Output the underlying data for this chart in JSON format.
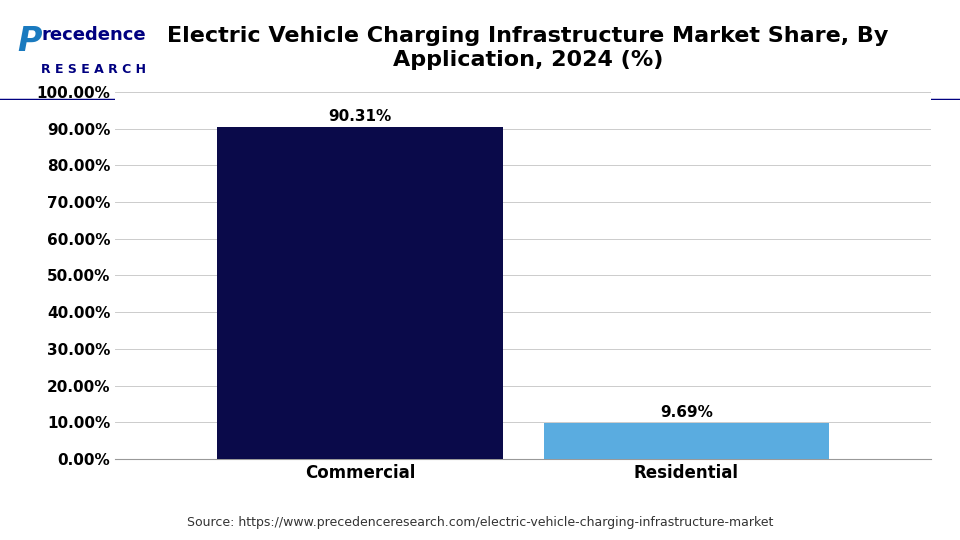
{
  "title": "Electric Vehicle Charging Infrastructure Market Share, By\nApplication, 2024 (%)",
  "categories": [
    "Commercial",
    "Residential"
  ],
  "values": [
    90.31,
    9.69
  ],
  "bar_colors": [
    "#0a0a4a",
    "#5aace0"
  ],
  "bar_labels": [
    "90.31%",
    "9.69%"
  ],
  "ylim": [
    0,
    100
  ],
  "yticks": [
    0,
    10,
    20,
    30,
    40,
    50,
    60,
    70,
    80,
    90,
    100
  ],
  "ytick_labels": [
    "0.00%",
    "10.00%",
    "20.00%",
    "30.00%",
    "40.00%",
    "50.00%",
    "60.00%",
    "70.00%",
    "80.00%",
    "90.00%",
    "100.00%"
  ],
  "source_text": "Source: https://www.precedenceresearch.com/electric-vehicle-charging-infrastructure-market",
  "background_color": "#ffffff",
  "title_fontsize": 16,
  "tick_fontsize": 11,
  "label_fontsize": 12,
  "bar_label_fontsize": 11,
  "bar_width": 0.35,
  "header_line_color": "#000080",
  "logo_color": "#000080",
  "logo_italic_color": "#1a7abf"
}
